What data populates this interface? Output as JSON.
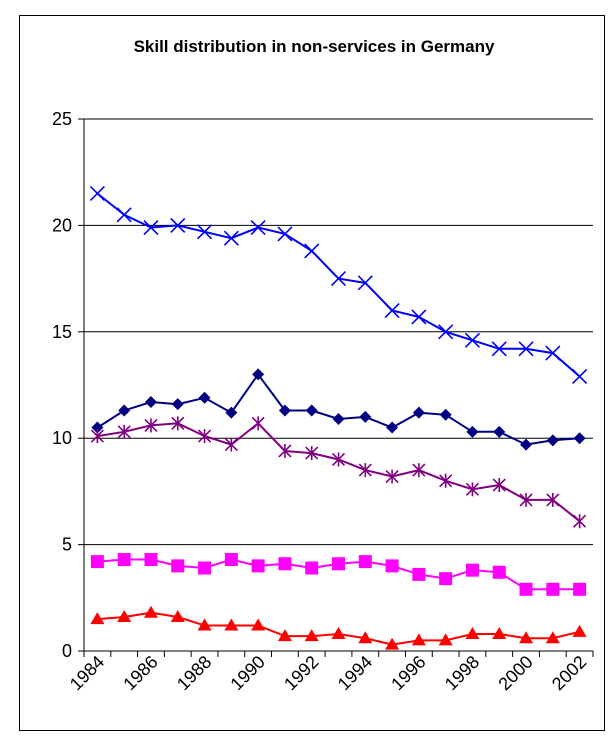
{
  "chart_data": {
    "type": "line",
    "title": "Skill distribution in non-services in Germany",
    "xlabel": "",
    "ylabel": "",
    "ylim": [
      0,
      25
    ],
    "yticks": [
      "0",
      "5",
      "10",
      "15",
      "20",
      "25"
    ],
    "x": [
      1984,
      1985,
      1986,
      1987,
      1988,
      1989,
      1990,
      1991,
      1992,
      1993,
      1994,
      1995,
      1996,
      1997,
      1998,
      1999,
      2000,
      2001,
      2002
    ],
    "xtick_labels": [
      "1984",
      "1986",
      "1988",
      "1990",
      "1992",
      "1994",
      "1996",
      "1998",
      "2000",
      "2002"
    ],
    "grid": "horizontal",
    "legend": "none",
    "series": [
      {
        "marker": "x",
        "color": "#0000ff",
        "values": [
          21.5,
          20.5,
          19.9,
          20.0,
          19.7,
          19.4,
          19.9,
          19.6,
          18.8,
          17.5,
          17.3,
          16.0,
          15.7,
          15.0,
          14.6,
          14.2,
          14.2,
          14.0,
          12.9
        ]
      },
      {
        "marker": "diamond",
        "color": "#000080",
        "values": [
          10.5,
          11.3,
          11.7,
          11.6,
          11.9,
          11.2,
          13.0,
          11.3,
          11.3,
          10.9,
          11.0,
          10.5,
          11.2,
          11.1,
          10.3,
          10.3,
          9.7,
          9.9,
          10.0
        ]
      },
      {
        "marker": "star",
        "color": "#800080",
        "values": [
          10.1,
          10.3,
          10.6,
          10.7,
          10.1,
          9.7,
          10.7,
          9.4,
          9.3,
          9.0,
          8.5,
          8.2,
          8.5,
          8.0,
          7.6,
          7.8,
          7.1,
          7.1,
          6.1
        ]
      },
      {
        "marker": "square",
        "color": "#ff00ff",
        "values": [
          4.2,
          4.3,
          4.3,
          4.0,
          3.9,
          4.3,
          4.0,
          4.1,
          3.9,
          4.1,
          4.2,
          4.0,
          3.6,
          3.4,
          3.8,
          3.7,
          2.9,
          2.9,
          2.9
        ]
      },
      {
        "marker": "triangle",
        "color": "#ff0000",
        "values": [
          1.5,
          1.6,
          1.8,
          1.6,
          1.2,
          1.2,
          1.2,
          0.7,
          0.7,
          0.8,
          0.6,
          0.3,
          0.5,
          0.5,
          0.8,
          0.8,
          0.6,
          0.6,
          0.9
        ]
      }
    ]
  }
}
